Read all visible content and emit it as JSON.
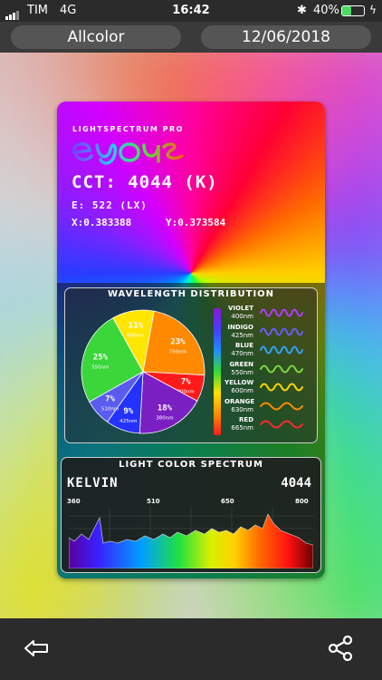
{
  "status_bar": {
    "carrier": "TIM",
    "network": "4G",
    "time": "16:42",
    "battery_percent": "40%",
    "battery_level": 0.4,
    "icons": [
      "signal-icon",
      "bluetooth-icon",
      "battery-icon",
      "charging-icon"
    ]
  },
  "header": {
    "mode_label": "Allcolor",
    "date_label": "12/06/2018"
  },
  "card": {
    "brand_top": "LIGHTSPECTRUM PRO",
    "brand_logo": "eyes",
    "cct": "CCT: 4044 (K)",
    "lux": "E: 522 (LX)",
    "x_coord": "X:0.383388",
    "y_coord": "Y:0.373584"
  },
  "wavelength": {
    "title": "WAVELENGTH DISTRIBUTION",
    "slices": [
      {
        "percent": "23%",
        "nm": "750nm",
        "value": 23,
        "color": "#ff8a00"
      },
      {
        "percent": "7%",
        "nm": "800nm",
        "value": 7,
        "color": "#ff1a1a"
      },
      {
        "percent": "18%",
        "nm": "380nm",
        "value": 18,
        "color": "#7a1fc2"
      },
      {
        "percent": "9%",
        "nm": "425nm",
        "value": 9,
        "color": "#2432ff"
      },
      {
        "percent": "7%",
        "nm": "510nm",
        "value": 7,
        "color": "#5a5cf0"
      },
      {
        "percent": "25%",
        "nm": "550nm",
        "value": 25,
        "color": "#3ad63a"
      },
      {
        "percent": "11%",
        "nm": "600nm",
        "value": 11,
        "color": "#ffe600"
      }
    ],
    "legend": [
      {
        "name": "VIOLET",
        "nm": "400nm",
        "color": "#b23cff"
      },
      {
        "name": "INDIGO",
        "nm": "425nm",
        "color": "#6a5cff"
      },
      {
        "name": "BLUE",
        "nm": "470nm",
        "color": "#2fa3ff"
      },
      {
        "name": "GREEN",
        "nm": "550nm",
        "color": "#7bd640"
      },
      {
        "name": "YELLOW",
        "nm": "600nm",
        "color": "#ffd500"
      },
      {
        "name": "ORANGE",
        "nm": "630nm",
        "color": "#ff8a00"
      },
      {
        "name": "RED",
        "nm": "665nm",
        "color": "#ff2a2a"
      }
    ]
  },
  "spectrum": {
    "title": "LIGHT COLOR SPECTRUM",
    "kelvin_label": "KELVIN",
    "kelvin_value": "4044",
    "ticks": [
      "360",
      "510",
      "650",
      "800"
    ]
  },
  "toolbar": {
    "back_icon": "back-arrow-icon",
    "share_icon": "share-icon"
  }
}
